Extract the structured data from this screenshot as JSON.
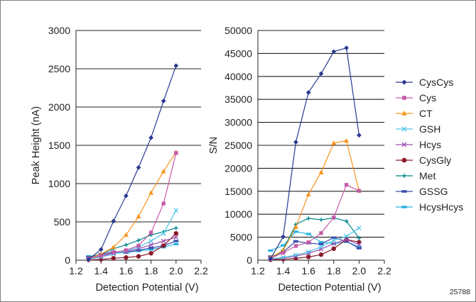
{
  "figure_id": "25788",
  "chart_data": [
    {
      "type": "line",
      "title": "",
      "xlabel": "Detection Potential (V)",
      "ylabel": "Peak Height (nA)",
      "xlim": [
        1.2,
        2.2
      ],
      "ylim": [
        0,
        3000
      ],
      "x_ticks": [
        "1.2",
        "1.4",
        "1.6",
        "1.8",
        "2.0",
        "2.2"
      ],
      "y_ticks": [
        "0",
        "500",
        "1000",
        "1500",
        "2000",
        "2500",
        "3000"
      ],
      "grid": "horizontal",
      "x": [
        1.3,
        1.4,
        1.5,
        1.6,
        1.7,
        1.8,
        1.9,
        2.0
      ],
      "series": [
        {
          "name": "CysCys",
          "color": "#2b3990",
          "marker": "diamond",
          "values": [
            10,
            140,
            510,
            840,
            1210,
            1600,
            2080,
            2540
          ]
        },
        {
          "name": "Cys",
          "color": "#c659a8",
          "marker": "square",
          "values": [
            20,
            60,
            100,
            130,
            190,
            360,
            740,
            1400
          ]
        },
        {
          "name": "CT",
          "color": "#f7941d",
          "marker": "triangle",
          "values": [
            20,
            80,
            170,
            330,
            570,
            880,
            1160,
            1410
          ]
        },
        {
          "name": "GSH",
          "color": "#4fc4e8",
          "marker": "x",
          "values": [
            15,
            40,
            80,
            120,
            170,
            250,
            350,
            650
          ]
        },
        {
          "name": "Hcys",
          "color": "#9b4fae",
          "marker": "x",
          "values": [
            20,
            50,
            90,
            110,
            150,
            200,
            250,
            300
          ]
        },
        {
          "name": "CysGly",
          "color": "#8b1a2b",
          "marker": "circle",
          "values": [
            5,
            10,
            25,
            35,
            50,
            90,
            190,
            350
          ]
        },
        {
          "name": "Met",
          "color": "#00868b",
          "marker": "plus",
          "values": [
            30,
            80,
            150,
            200,
            260,
            330,
            370,
            420
          ]
        },
        {
          "name": "GSSG",
          "color": "#3a4fb0",
          "marker": "bar",
          "values": [
            40,
            80,
            110,
            100,
            130,
            160,
            190,
            250
          ]
        },
        {
          "name": "HcysHcys",
          "color": "#2ab4e0",
          "marker": "bar",
          "values": [
            50,
            70,
            90,
            100,
            120,
            140,
            170,
            210
          ]
        }
      ]
    },
    {
      "type": "line",
      "title": "",
      "xlabel": "Detection Potential (V)",
      "ylabel": "S/N",
      "xlim": [
        1.2,
        2.2
      ],
      "ylim": [
        0,
        50000
      ],
      "x_ticks": [
        "1.2",
        "1.4",
        "1.6",
        "1.8",
        "2.0",
        "2.2"
      ],
      "y_ticks": [
        "0",
        "5000",
        "10000",
        "15000",
        "20000",
        "25000",
        "30000",
        "35000",
        "40000",
        "45000",
        "50000"
      ],
      "grid": "horizontal",
      "x": [
        1.3,
        1.4,
        1.5,
        1.6,
        1.7,
        1.8,
        1.9,
        2.0
      ],
      "series": [
        {
          "name": "CysCys",
          "color": "#2b3990",
          "marker": "diamond",
          "values": [
            300,
            5100,
            25700,
            36500,
            40600,
            45400,
            46200,
            27200
          ]
        },
        {
          "name": "Cys",
          "color": "#c659a8",
          "marker": "square",
          "values": [
            400,
            1600,
            3100,
            3900,
            5900,
            9300,
            16400,
            15100
          ]
        },
        {
          "name": "CT",
          "color": "#f7941d",
          "marker": "triangle",
          "values": [
            600,
            2100,
            7200,
            14300,
            19100,
            25500,
            26000,
            15100
          ]
        },
        {
          "name": "GSH",
          "color": "#4fc4e8",
          "marker": "x",
          "values": [
            300,
            600,
            1100,
            1800,
            2900,
            4300,
            5200,
            7000
          ]
        },
        {
          "name": "Hcys",
          "color": "#9b4fae",
          "marker": "x",
          "values": [
            200,
            500,
            900,
            1500,
            2400,
            3600,
            4500,
            3400
          ]
        },
        {
          "name": "CysGly",
          "color": "#8b1a2b",
          "marker": "circle",
          "values": [
            100,
            200,
            400,
            700,
            1200,
            2500,
            4500,
            3900
          ]
        },
        {
          "name": "Met",
          "color": "#00868b",
          "marker": "plus",
          "values": [
            200,
            2200,
            7800,
            9100,
            8800,
            9200,
            8500,
            4800
          ]
        },
        {
          "name": "GSSG",
          "color": "#3a4fb0",
          "marker": "bar",
          "values": [
            800,
            1800,
            4100,
            3700,
            3500,
            4900,
            4100,
            2600
          ]
        },
        {
          "name": "HcysHcys",
          "color": "#2ab4e0",
          "marker": "bar",
          "values": [
            2100,
            3200,
            6200,
            5700,
            3900,
            3600,
            4000,
            2900
          ]
        }
      ]
    }
  ]
}
